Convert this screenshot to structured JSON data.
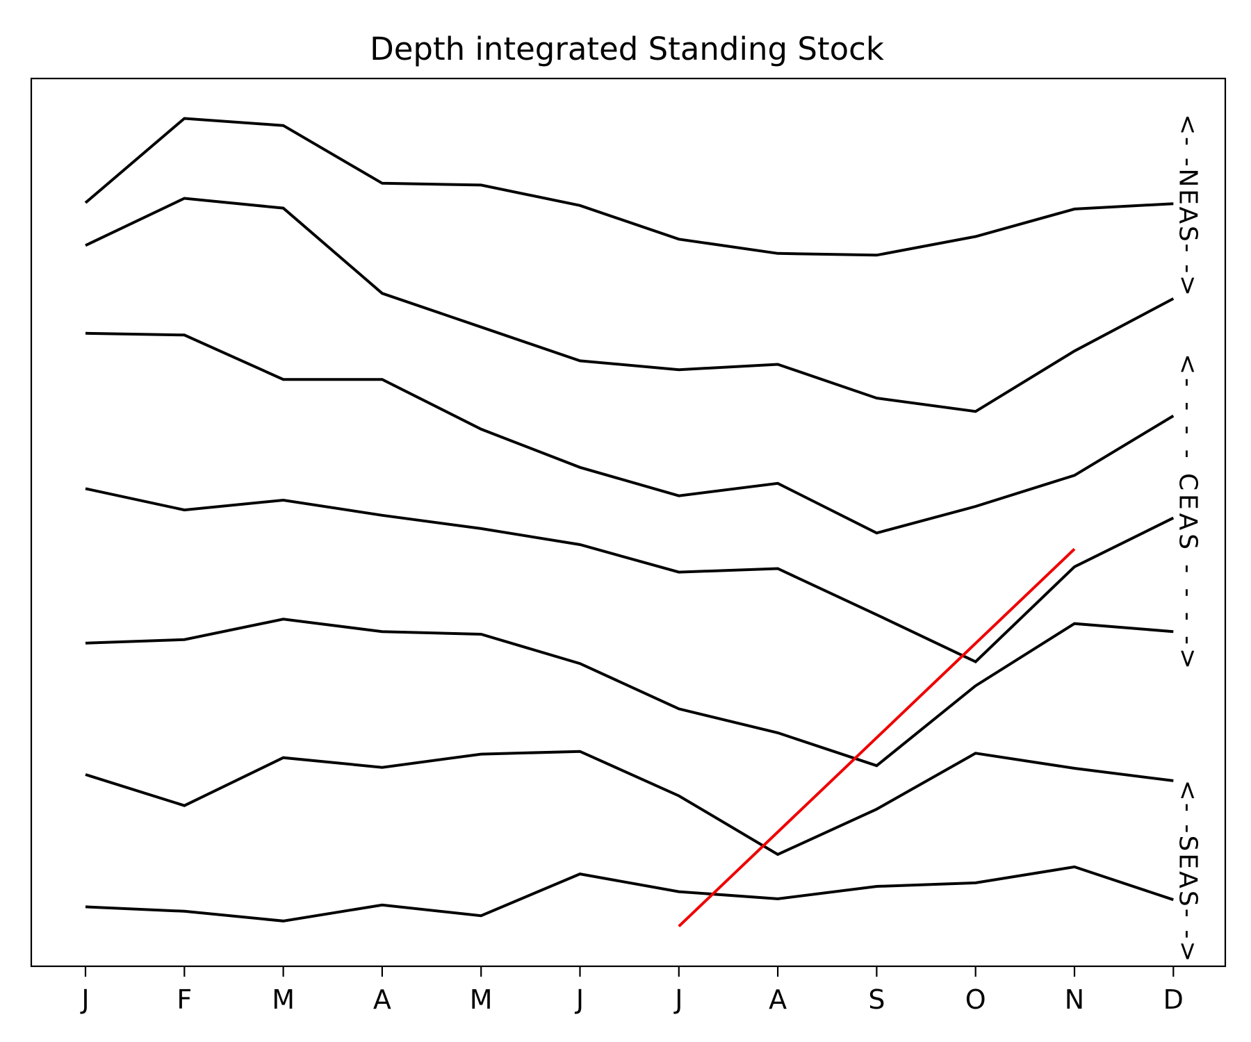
{
  "chart_data": {
    "type": "line",
    "title": "Depth integrated Standing Stock",
    "xlabel": "",
    "ylabel": "",
    "categories": [
      "J",
      "F",
      "M",
      "A",
      "M",
      "J",
      "J",
      "A",
      "S",
      "O",
      "N",
      "D"
    ],
    "ylim": [
      0,
      1
    ],
    "grid": false,
    "y_ticks_visible": false,
    "line_color": "#000000",
    "series": [
      {
        "values": [
          0.86,
          0.955,
          0.947,
          0.882,
          0.88,
          0.857,
          0.819,
          0.803,
          0.801,
          0.822,
          0.853,
          0.859
        ]
      },
      {
        "values": [
          0.812,
          0.865,
          0.854,
          0.758,
          0.72,
          0.682,
          0.672,
          0.678,
          0.64,
          0.625,
          0.693,
          0.752
        ]
      },
      {
        "values": [
          0.713,
          0.711,
          0.661,
          0.661,
          0.605,
          0.562,
          0.53,
          0.544,
          0.488,
          0.518,
          0.553,
          0.62
        ]
      },
      {
        "values": [
          0.538,
          0.514,
          0.525,
          0.508,
          0.493,
          0.475,
          0.444,
          0.448,
          0.396,
          0.343,
          0.45,
          0.505
        ]
      },
      {
        "values": [
          0.364,
          0.368,
          0.391,
          0.377,
          0.374,
          0.341,
          0.29,
          0.263,
          0.226,
          0.316,
          0.386,
          0.377
        ]
      },
      {
        "values": [
          0.216,
          0.181,
          0.235,
          0.224,
          0.239,
          0.242,
          0.192,
          0.126,
          0.177,
          0.24,
          0.223,
          0.209
        ]
      },
      {
        "values": [
          0.067,
          0.062,
          0.051,
          0.069,
          0.057,
          0.104,
          0.084,
          0.076,
          0.09,
          0.094,
          0.112,
          0.075
        ]
      }
    ],
    "highlight_line": {
      "color": "#ee0000",
      "points": [
        {
          "x": "J",
          "y": 0.045
        },
        {
          "x": "N",
          "y": 0.47
        }
      ]
    },
    "annotations": [
      {
        "text": "<- -NEAS- ->",
        "y_top": 0.96,
        "y_bottom": 0.755
      },
      {
        "text": "<- - - - CEAS - - - ->",
        "y_top": 0.69,
        "y_bottom": 0.335
      },
      {
        "text": "<- -SEAS- ->",
        "y_top": 0.21,
        "y_bottom": 0.005
      }
    ]
  }
}
